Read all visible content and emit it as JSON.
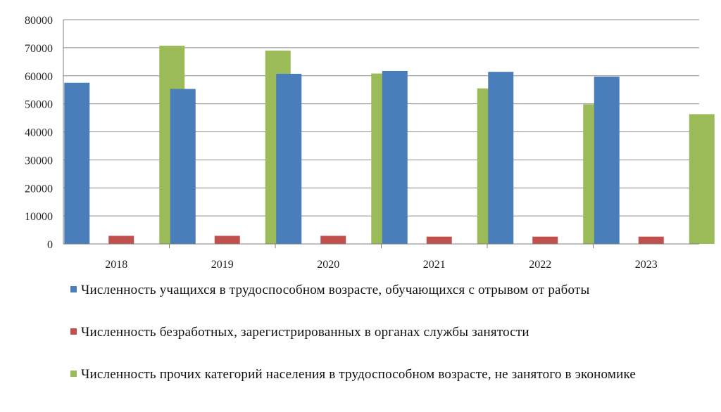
{
  "chart_data": {
    "type": "bar",
    "categories": [
      "2018",
      "2019",
      "2020",
      "2021",
      "2022",
      "2023"
    ],
    "series": [
      {
        "name": "Численность учащихся в трудоспособном возрасте, обучающихся с отрывом от работы",
        "color": "#4a7ebb",
        "values": [
          57500,
          55300,
          60700,
          61700,
          61400,
          59700
        ]
      },
      {
        "name": "Численность безработных, зарегистрированных в органах службы занятости",
        "color": "#c0504d",
        "values": [
          2900,
          2900,
          2900,
          2600,
          2600,
          2600
        ]
      },
      {
        "name": "Численность прочих категорий населения в трудоспособном возрасте, не занятого в экономике",
        "color": "#9bbb59",
        "values": [
          70700,
          69000,
          60800,
          55500,
          49800,
          46300
        ]
      }
    ],
    "title": "",
    "xlabel": "",
    "ylabel": "",
    "ylim": [
      0,
      80000
    ],
    "yticks": [
      "0",
      "10000",
      "20000",
      "30000",
      "40000",
      "50000",
      "60000",
      "70000",
      "80000"
    ],
    "grid": true,
    "legend_position": "bottom"
  }
}
